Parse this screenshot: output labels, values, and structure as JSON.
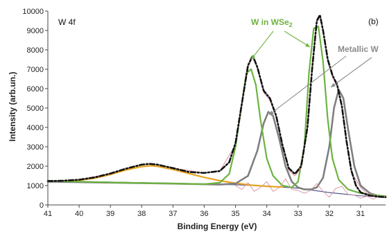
{
  "chart_data": {
    "type": "line",
    "title": "",
    "panel_label": "W 4f",
    "corner_label": "(b)",
    "xlabel": "Binding Energy (eV)",
    "ylabel": "Intensity (arb.un.)",
    "x_reversed": true,
    "xlim": [
      41,
      30.2
    ],
    "ylim": [
      0,
      10000
    ],
    "x_ticks": [
      41,
      40,
      39,
      38,
      37,
      36,
      35,
      34,
      33,
      32,
      31
    ],
    "y_ticks": [
      0,
      1000,
      2000,
      3000,
      4000,
      5000,
      6000,
      7000,
      8000,
      9000,
      10000
    ],
    "grid": false,
    "colors": {
      "envelope": "#111111",
      "w_in_wse2": "#6cb33f",
      "metallic_w": "#7f7f7f",
      "oxide_component": "#e8a321",
      "fit_sum": "#d98fa0",
      "background": "#505a8c",
      "annot_green": "#6cb33f",
      "annot_grey": "#8a8a8a"
    },
    "annotations": {
      "w_in_wse2": {
        "prefix": "W in WSe",
        "subscript": "2"
      },
      "metallic_w": "Metallic W"
    },
    "series": [
      {
        "role": "envelope",
        "x": [
          41,
          40.5,
          40,
          39.5,
          39,
          38.5,
          38,
          37.75,
          37.5,
          37,
          36.5,
          36,
          35.5,
          35.2,
          35,
          34.8,
          34.6,
          34.45,
          34.3,
          34.1,
          33.9,
          33.7,
          33.5,
          33.3,
          33.1,
          32.9,
          32.7,
          32.55,
          32.4,
          32.3,
          32.2,
          32.05,
          31.9,
          31.75,
          31.6,
          31.45,
          31.3,
          31.15,
          31,
          30.7,
          30.4,
          30.2
        ],
        "y": [
          1230,
          1250,
          1300,
          1420,
          1620,
          1870,
          2080,
          2120,
          2080,
          1900,
          1700,
          1650,
          1750,
          2200,
          3200,
          5200,
          7200,
          7700,
          7100,
          5900,
          5500,
          4600,
          3100,
          1900,
          1600,
          2000,
          4000,
          7000,
          9500,
          9800,
          9000,
          7500,
          6700,
          6200,
          5100,
          3300,
          1800,
          1000,
          650,
          480,
          420,
          400
        ]
      },
      {
        "role": "w_in_wse2",
        "x": [
          41,
          40,
          39,
          38,
          37,
          36,
          35.5,
          35.2,
          35,
          34.8,
          34.65,
          34.5,
          34.35,
          34.2,
          34,
          33.8,
          33.5,
          33.2,
          33,
          32.8,
          32.65,
          32.5,
          32.35,
          32.2,
          32.05,
          31.9,
          31.7,
          31.4,
          31,
          30.5,
          30.2
        ],
        "y": [
          1250,
          1200,
          1160,
          1130,
          1100,
          1070,
          1150,
          1600,
          3000,
          5200,
          6800,
          7000,
          6200,
          4400,
          2400,
          1500,
          1000,
          900,
          1200,
          3000,
          6800,
          9100,
          9200,
          7400,
          4400,
          2400,
          1300,
          800,
          600,
          500,
          450
        ]
      },
      {
        "role": "metallic_w",
        "x": [
          41,
          39,
          37,
          35.5,
          35,
          34.6,
          34.3,
          34.1,
          33.95,
          33.8,
          33.6,
          33.4,
          33.2,
          33,
          32.8,
          32.6,
          32.4,
          32.2,
          32,
          31.85,
          31.7,
          31.55,
          31.4,
          31.2,
          31,
          30.7,
          30.4,
          30.2
        ],
        "y": [
          1200,
          1150,
          1100,
          1050,
          1100,
          1500,
          2800,
          4200,
          4800,
          4600,
          3400,
          2000,
          1200,
          900,
          800,
          800,
          900,
          1400,
          3000,
          5000,
          5950,
          5500,
          3900,
          2000,
          1000,
          600,
          450,
          400
        ]
      },
      {
        "role": "oxide_component",
        "x": [
          41,
          40.5,
          40,
          39.5,
          39,
          38.5,
          38,
          37.7,
          37.5,
          37,
          36.5,
          36,
          35.5,
          35,
          34.5,
          34,
          33.5
        ],
        "y": [
          1200,
          1220,
          1270,
          1380,
          1570,
          1800,
          1980,
          2020,
          1990,
          1830,
          1620,
          1420,
          1250,
          1120,
          1020,
          960,
          920
        ]
      },
      {
        "role": "fit_sum",
        "x": [
          41,
          40,
          39,
          38,
          37.5,
          37,
          36,
          35.5,
          35,
          34.8,
          34.6,
          34.45,
          34.3,
          34.1,
          33.9,
          33.7,
          33.5,
          33.3,
          33.1,
          32.9,
          32.7,
          32.55,
          32.4,
          32.3,
          32.2,
          32.05,
          31.9,
          31.75,
          31.6,
          31.45,
          31.3,
          31,
          30.8,
          30.6,
          30.4,
          30.2
        ],
        "y": [
          1230,
          1300,
          1620,
          2080,
          2080,
          1900,
          1650,
          1750,
          3100,
          5100,
          7100,
          7650,
          7050,
          5800,
          5400,
          4500,
          3000,
          1800,
          1500,
          1900,
          3900,
          6900,
          9400,
          9700,
          8900,
          7400,
          6600,
          6100,
          5000,
          3200,
          1700,
          900,
          600,
          500,
          450,
          420
        ]
      },
      {
        "role": "residual",
        "x": [
          35,
          34.8,
          34.6,
          34.4,
          34.2,
          34,
          33.8,
          33.6,
          33.4,
          33.2,
          33,
          32.8,
          32.6,
          32.4,
          32.2,
          32,
          31.8,
          31.6,
          31.4,
          31.2,
          31,
          30.8,
          30.6,
          30.4,
          30.2
        ],
        "y": [
          1000,
          800,
          1150,
          700,
          900,
          1200,
          700,
          900,
          1350,
          800,
          750,
          600,
          750,
          1100,
          700,
          400,
          850,
          950,
          550,
          500,
          350,
          450,
          300,
          450,
          380
        ]
      },
      {
        "role": "background",
        "x": [
          41,
          40,
          39,
          38,
          37,
          36,
          35,
          34,
          33,
          32,
          31,
          30.2
        ],
        "y": [
          1240,
          1210,
          1180,
          1150,
          1120,
          1080,
          1040,
          980,
          860,
          640,
          470,
          420
        ]
      }
    ]
  }
}
